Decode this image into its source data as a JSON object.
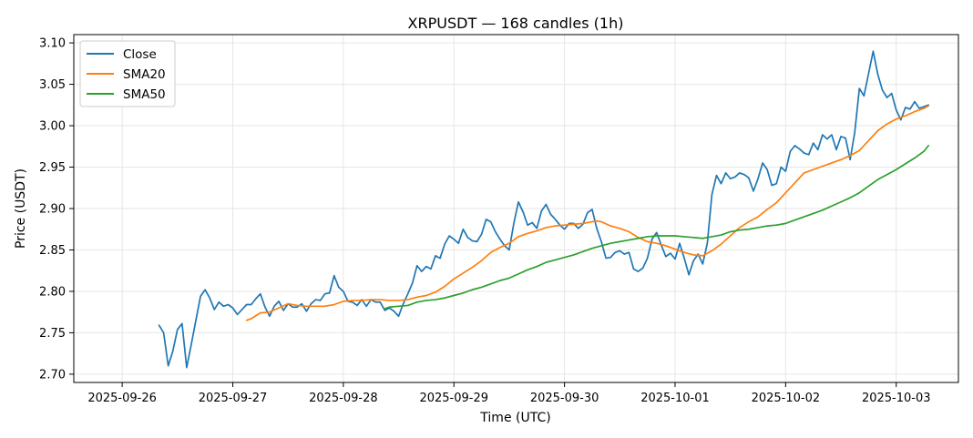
{
  "chart_data": {
    "type": "line",
    "title": "XRPUSDT — 168 candles (1h)",
    "xlabel": "Time (UTC)",
    "ylabel": "Price (USDT)",
    "x_unit": "hours since 2025-09-26 00:00 UTC",
    "xlim": [
      -10.5,
      181.5
    ],
    "ylim": [
      2.69,
      3.11
    ],
    "grid": true,
    "legend_placement": "top-left",
    "x_ticks": [
      {
        "label": "2025-09-26",
        "value": 0
      },
      {
        "label": "2025-09-27",
        "value": 24
      },
      {
        "label": "2025-09-28",
        "value": 48
      },
      {
        "label": "2025-09-29",
        "value": 72
      },
      {
        "label": "2025-09-30",
        "value": 96
      },
      {
        "label": "2025-10-01",
        "value": 120
      },
      {
        "label": "2025-10-02",
        "value": 144
      },
      {
        "label": "2025-10-03",
        "value": 168
      }
    ],
    "y_ticks": [
      {
        "label": "2.70",
        "value": 2.7
      },
      {
        "label": "2.75",
        "value": 2.75
      },
      {
        "label": "2.80",
        "value": 2.8
      },
      {
        "label": "2.85",
        "value": 2.85
      },
      {
        "label": "2.90",
        "value": 2.9
      },
      {
        "label": "2.95",
        "value": 2.95
      },
      {
        "label": "3.00",
        "value": 3.0
      },
      {
        "label": "3.05",
        "value": 3.05
      },
      {
        "label": "3.10",
        "value": 3.1
      }
    ],
    "series": [
      {
        "name": "Close",
        "color": "#1f77b4",
        "points": [
          [
            8,
            2.759
          ],
          [
            9,
            2.75
          ],
          [
            10,
            2.71
          ],
          [
            11,
            2.728
          ],
          [
            12,
            2.754
          ],
          [
            13,
            2.761
          ],
          [
            14,
            2.708
          ],
          [
            15,
            2.736
          ],
          [
            16,
            2.765
          ],
          [
            17,
            2.794
          ],
          [
            18,
            2.802
          ],
          [
            19,
            2.792
          ],
          [
            20,
            2.778
          ],
          [
            21,
            2.787
          ],
          [
            22,
            2.782
          ],
          [
            23,
            2.784
          ],
          [
            24,
            2.78
          ],
          [
            25,
            2.772
          ],
          [
            26,
            2.778
          ],
          [
            27,
            2.784
          ],
          [
            28,
            2.784
          ],
          [
            29,
            2.791
          ],
          [
            30,
            2.797
          ],
          [
            31,
            2.781
          ],
          [
            32,
            2.77
          ],
          [
            33,
            2.782
          ],
          [
            34,
            2.788
          ],
          [
            35,
            2.777
          ],
          [
            36,
            2.785
          ],
          [
            37,
            2.781
          ],
          [
            38,
            2.781
          ],
          [
            39,
            2.785
          ],
          [
            40,
            2.776
          ],
          [
            41,
            2.785
          ],
          [
            42,
            2.79
          ],
          [
            43,
            2.789
          ],
          [
            44,
            2.797
          ],
          [
            45,
            2.798
          ],
          [
            46,
            2.819
          ],
          [
            47,
            2.805
          ],
          [
            48,
            2.8
          ],
          [
            49,
            2.788
          ],
          [
            50,
            2.787
          ],
          [
            51,
            2.783
          ],
          [
            52,
            2.79
          ],
          [
            53,
            2.782
          ],
          [
            54,
            2.79
          ],
          [
            55,
            2.787
          ],
          [
            56,
            2.787
          ],
          [
            57,
            2.777
          ],
          [
            58,
            2.78
          ],
          [
            59,
            2.776
          ],
          [
            60,
            2.77
          ],
          [
            61,
            2.785
          ],
          [
            62,
            2.797
          ],
          [
            63,
            2.81
          ],
          [
            64,
            2.831
          ],
          [
            65,
            2.824
          ],
          [
            66,
            2.83
          ],
          [
            67,
            2.827
          ],
          [
            68,
            2.843
          ],
          [
            69,
            2.84
          ],
          [
            70,
            2.857
          ],
          [
            71,
            2.867
          ],
          [
            72,
            2.863
          ],
          [
            73,
            2.858
          ],
          [
            74,
            2.875
          ],
          [
            75,
            2.865
          ],
          [
            76,
            2.861
          ],
          [
            77,
            2.86
          ],
          [
            78,
            2.869
          ],
          [
            79,
            2.887
          ],
          [
            80,
            2.884
          ],
          [
            81,
            2.872
          ],
          [
            82,
            2.863
          ],
          [
            83,
            2.855
          ],
          [
            84,
            2.85
          ],
          [
            85,
            2.882
          ],
          [
            86,
            2.908
          ],
          [
            87,
            2.896
          ],
          [
            88,
            2.88
          ],
          [
            89,
            2.883
          ],
          [
            90,
            2.876
          ],
          [
            91,
            2.897
          ],
          [
            92,
            2.905
          ],
          [
            93,
            2.893
          ],
          [
            94,
            2.887
          ],
          [
            95,
            2.88
          ],
          [
            96,
            2.875
          ],
          [
            97,
            2.882
          ],
          [
            98,
            2.882
          ],
          [
            99,
            2.876
          ],
          [
            100,
            2.881
          ],
          [
            101,
            2.895
          ],
          [
            102,
            2.899
          ],
          [
            103,
            2.876
          ],
          [
            104,
            2.86
          ],
          [
            105,
            2.84
          ],
          [
            106,
            2.841
          ],
          [
            107,
            2.847
          ],
          [
            108,
            2.849
          ],
          [
            109,
            2.845
          ],
          [
            110,
            2.847
          ],
          [
            111,
            2.827
          ],
          [
            112,
            2.824
          ],
          [
            113,
            2.828
          ],
          [
            114,
            2.84
          ],
          [
            115,
            2.863
          ],
          [
            116,
            2.871
          ],
          [
            117,
            2.856
          ],
          [
            118,
            2.842
          ],
          [
            119,
            2.846
          ],
          [
            120,
            2.839
          ],
          [
            121,
            2.858
          ],
          [
            122,
            2.84
          ],
          [
            123,
            2.82
          ],
          [
            124,
            2.837
          ],
          [
            125,
            2.845
          ],
          [
            126,
            2.833
          ],
          [
            127,
            2.858
          ],
          [
            128,
            2.917
          ],
          [
            129,
            2.94
          ],
          [
            130,
            2.93
          ],
          [
            131,
            2.943
          ],
          [
            132,
            2.936
          ],
          [
            133,
            2.938
          ],
          [
            134,
            2.943
          ],
          [
            135,
            2.941
          ],
          [
            136,
            2.937
          ],
          [
            137,
            2.921
          ],
          [
            138,
            2.936
          ],
          [
            139,
            2.955
          ],
          [
            140,
            2.947
          ],
          [
            141,
            2.928
          ],
          [
            142,
            2.93
          ],
          [
            143,
            2.95
          ],
          [
            144,
            2.945
          ],
          [
            145,
            2.969
          ],
          [
            146,
            2.976
          ],
          [
            147,
            2.972
          ],
          [
            148,
            2.967
          ],
          [
            149,
            2.965
          ],
          [
            150,
            2.979
          ],
          [
            151,
            2.971
          ],
          [
            152,
            2.989
          ],
          [
            153,
            2.984
          ],
          [
            154,
            2.989
          ],
          [
            155,
            2.971
          ],
          [
            156,
            2.987
          ],
          [
            157,
            2.985
          ],
          [
            158,
            2.959
          ],
          [
            159,
            2.992
          ],
          [
            160,
            3.045
          ],
          [
            161,
            3.036
          ],
          [
            162,
            3.063
          ],
          [
            163,
            3.09
          ],
          [
            164,
            3.062
          ],
          [
            165,
            3.043
          ],
          [
            166,
            3.034
          ],
          [
            167,
            3.039
          ],
          [
            168,
            3.019
          ],
          [
            169,
            3.007
          ],
          [
            170,
            3.022
          ],
          [
            171,
            3.02
          ],
          [
            172,
            3.029
          ],
          [
            173,
            3.021
          ],
          [
            174,
            3.023
          ],
          [
            175,
            3.025
          ]
        ]
      },
      {
        "name": "SMA20",
        "color": "#ff7f0e",
        "points": [
          [
            27,
            2.765
          ],
          [
            28,
            2.767
          ],
          [
            30,
            2.774
          ],
          [
            32,
            2.775
          ],
          [
            34,
            2.78
          ],
          [
            36,
            2.785
          ],
          [
            38,
            2.783
          ],
          [
            40,
            2.782
          ],
          [
            42,
            2.782
          ],
          [
            44,
            2.782
          ],
          [
            46,
            2.784
          ],
          [
            48,
            2.788
          ],
          [
            50,
            2.789
          ],
          [
            52,
            2.789
          ],
          [
            54,
            2.79
          ],
          [
            56,
            2.79
          ],
          [
            58,
            2.789
          ],
          [
            60,
            2.789
          ],
          [
            62,
            2.79
          ],
          [
            64,
            2.793
          ],
          [
            66,
            2.795
          ],
          [
            68,
            2.799
          ],
          [
            70,
            2.806
          ],
          [
            72,
            2.815
          ],
          [
            74,
            2.822
          ],
          [
            76,
            2.829
          ],
          [
            78,
            2.837
          ],
          [
            80,
            2.847
          ],
          [
            82,
            2.853
          ],
          [
            84,
            2.858
          ],
          [
            86,
            2.866
          ],
          [
            88,
            2.87
          ],
          [
            90,
            2.873
          ],
          [
            92,
            2.877
          ],
          [
            94,
            2.879
          ],
          [
            96,
            2.88
          ],
          [
            98,
            2.881
          ],
          [
            100,
            2.882
          ],
          [
            102,
            2.884
          ],
          [
            103,
            2.885
          ],
          [
            104,
            2.884
          ],
          [
            106,
            2.879
          ],
          [
            108,
            2.876
          ],
          [
            110,
            2.872
          ],
          [
            112,
            2.865
          ],
          [
            114,
            2.86
          ],
          [
            116,
            2.858
          ],
          [
            118,
            2.855
          ],
          [
            120,
            2.851
          ],
          [
            122,
            2.847
          ],
          [
            124,
            2.844
          ],
          [
            126,
            2.843
          ],
          [
            128,
            2.849
          ],
          [
            130,
            2.857
          ],
          [
            132,
            2.867
          ],
          [
            134,
            2.877
          ],
          [
            136,
            2.884
          ],
          [
            138,
            2.89
          ],
          [
            140,
            2.899
          ],
          [
            142,
            2.907
          ],
          [
            144,
            2.919
          ],
          [
            146,
            2.931
          ],
          [
            148,
            2.943
          ],
          [
            150,
            2.947
          ],
          [
            152,
            2.951
          ],
          [
            154,
            2.955
          ],
          [
            156,
            2.959
          ],
          [
            158,
            2.964
          ],
          [
            160,
            2.97
          ],
          [
            162,
            2.982
          ],
          [
            164,
            2.994
          ],
          [
            166,
            3.002
          ],
          [
            168,
            3.008
          ],
          [
            170,
            3.012
          ],
          [
            172,
            3.017
          ],
          [
            174,
            3.021
          ],
          [
            175,
            3.024
          ]
        ]
      },
      {
        "name": "SMA50",
        "color": "#2ca02c",
        "points": [
          [
            57,
            2.779
          ],
          [
            58,
            2.781
          ],
          [
            60,
            2.782
          ],
          [
            62,
            2.783
          ],
          [
            64,
            2.787
          ],
          [
            66,
            2.789
          ],
          [
            68,
            2.79
          ],
          [
            70,
            2.792
          ],
          [
            72,
            2.795
          ],
          [
            74,
            2.798
          ],
          [
            76,
            2.802
          ],
          [
            78,
            2.805
          ],
          [
            80,
            2.809
          ],
          [
            82,
            2.813
          ],
          [
            84,
            2.816
          ],
          [
            86,
            2.821
          ],
          [
            88,
            2.826
          ],
          [
            90,
            2.83
          ],
          [
            92,
            2.835
          ],
          [
            94,
            2.838
          ],
          [
            96,
            2.841
          ],
          [
            98,
            2.844
          ],
          [
            100,
            2.848
          ],
          [
            102,
            2.852
          ],
          [
            104,
            2.855
          ],
          [
            106,
            2.858
          ],
          [
            108,
            2.86
          ],
          [
            110,
            2.862
          ],
          [
            112,
            2.864
          ],
          [
            114,
            2.866
          ],
          [
            116,
            2.867
          ],
          [
            118,
            2.867
          ],
          [
            120,
            2.867
          ],
          [
            122,
            2.866
          ],
          [
            124,
            2.865
          ],
          [
            126,
            2.864
          ],
          [
            128,
            2.866
          ],
          [
            130,
            2.868
          ],
          [
            132,
            2.872
          ],
          [
            134,
            2.874
          ],
          [
            136,
            2.875
          ],
          [
            138,
            2.877
          ],
          [
            140,
            2.879
          ],
          [
            142,
            2.88
          ],
          [
            144,
            2.882
          ],
          [
            146,
            2.886
          ],
          [
            148,
            2.89
          ],
          [
            150,
            2.894
          ],
          [
            152,
            2.898
          ],
          [
            154,
            2.903
          ],
          [
            156,
            2.908
          ],
          [
            158,
            2.913
          ],
          [
            160,
            2.919
          ],
          [
            162,
            2.927
          ],
          [
            164,
            2.935
          ],
          [
            166,
            2.941
          ],
          [
            168,
            2.947
          ],
          [
            170,
            2.954
          ],
          [
            172,
            2.961
          ],
          [
            174,
            2.969
          ],
          [
            175,
            2.976
          ]
        ]
      }
    ]
  }
}
